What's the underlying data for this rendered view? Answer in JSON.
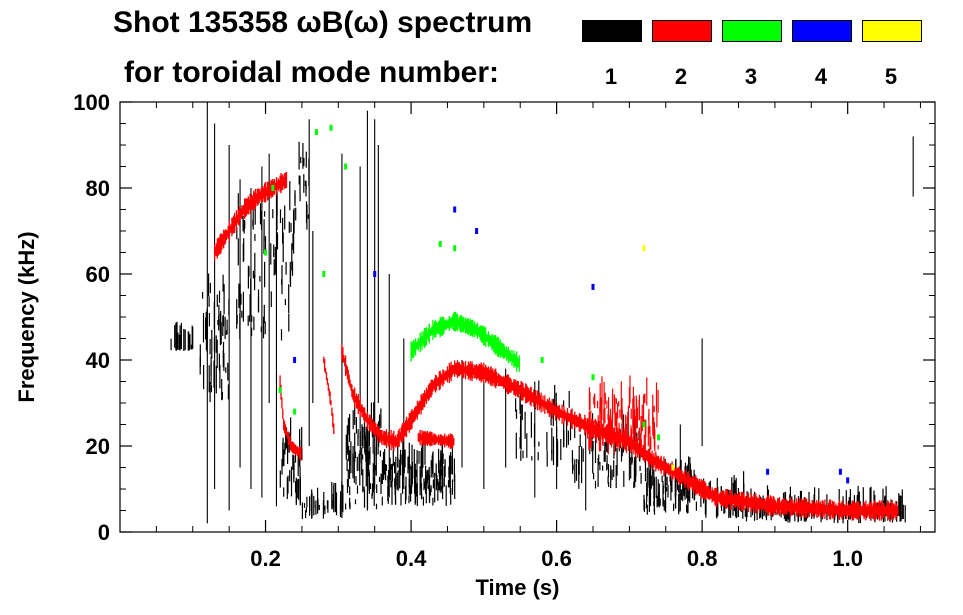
{
  "chart_data": {
    "type": "scatter",
    "title_line1": "Shot 135358 ωB(ω) spectrum",
    "title_line2": "for toroidal mode number:",
    "xlabel": "Time (s)",
    "ylabel": "Frequency (kHz)",
    "xlim": [
      0.0,
      1.12
    ],
    "ylim": [
      0,
      100
    ],
    "xticks": [
      0.2,
      0.4,
      0.6,
      0.8,
      1.0
    ],
    "xtick_labels": [
      "0.2",
      "0.4",
      "0.6",
      "0.8",
      "1.0"
    ],
    "yticks": [
      0,
      20,
      40,
      60,
      80,
      100
    ],
    "ytick_labels": [
      "0",
      "20",
      "40",
      "60",
      "80",
      "100"
    ],
    "legend": [
      {
        "label": "1",
        "color": "#000000"
      },
      {
        "label": "2",
        "color": "#ff0000"
      },
      {
        "label": "3",
        "color": "#00ff00"
      },
      {
        "label": "4",
        "color": "#0000ff"
      },
      {
        "label": "5",
        "color": "#ffff00"
      }
    ],
    "series": [
      {
        "name": "n=1",
        "color": "#000000",
        "blobs": [
          {
            "t": [
              0.07,
              0.1
            ],
            "f": [
              42,
              43
            ],
            "d": 8
          },
          {
            "t": [
              0.11,
              0.15
            ],
            "f": [
              30,
              56
            ],
            "d": 14
          },
          {
            "t": [
              0.16,
              0.24
            ],
            "f": [
              44,
              76
            ],
            "d": 10
          },
          {
            "t": [
              0.24,
              0.26
            ],
            "f": [
              70,
              88
            ],
            "d": 10
          },
          {
            "t": [
              0.22,
              0.25
            ],
            "f": [
              6,
              20
            ],
            "d": 12
          },
          {
            "t": [
              0.25,
              0.31
            ],
            "f": [
              3,
              6
            ],
            "d": 6
          },
          {
            "t": [
              0.31,
              0.36
            ],
            "f": [
              5,
              25
            ],
            "d": 18
          },
          {
            "t": [
              0.36,
              0.46
            ],
            "f": [
              6,
              16
            ],
            "d": 16
          },
          {
            "t": [
              0.54,
              0.62
            ],
            "f": [
              15,
              30
            ],
            "d": 6
          },
          {
            "t": [
              0.62,
              0.72
            ],
            "f": [
              10,
              22
            ],
            "d": 8
          },
          {
            "t": [
              0.72,
              0.8
            ],
            "f": [
              4,
              12
            ],
            "d": 12
          },
          {
            "t": [
              0.8,
              0.86
            ],
            "f": [
              3,
              8
            ],
            "d": 8
          },
          {
            "t": [
              0.86,
              1.08
            ],
            "f": [
              2,
              4
            ],
            "d": 6
          }
        ],
        "streaks": [
          {
            "t": 0.12,
            "f": [
              2,
              100
            ]
          },
          {
            "t": 0.13,
            "f": [
              10,
              95
            ]
          },
          {
            "t": 0.15,
            "f": [
              5,
              90
            ]
          },
          {
            "t": 0.165,
            "f": [
              15,
              82
            ]
          },
          {
            "t": 0.18,
            "f": [
              10,
              80
            ]
          },
          {
            "t": 0.195,
            "f": [
              8,
              85
            ]
          },
          {
            "t": 0.205,
            "f": [
              30,
              88
            ]
          },
          {
            "t": 0.215,
            "f": [
              6,
              80
            ]
          },
          {
            "t": 0.26,
            "f": [
              20,
              96
            ]
          },
          {
            "t": 0.265,
            "f": [
              30,
              70
            ]
          },
          {
            "t": 0.305,
            "f": [
              10,
              88
            ]
          },
          {
            "t": 0.33,
            "f": [
              20,
              85
            ]
          },
          {
            "t": 0.34,
            "f": [
              5,
              98
            ]
          },
          {
            "t": 0.35,
            "f": [
              10,
              96
            ]
          },
          {
            "t": 0.355,
            "f": [
              30,
              90
            ]
          },
          {
            "t": 0.37,
            "f": [
              8,
              60
            ]
          },
          {
            "t": 0.39,
            "f": [
              10,
              45
            ]
          },
          {
            "t": 0.47,
            "f": [
              15,
              40
            ]
          },
          {
            "t": 0.5,
            "f": [
              10,
              35
            ]
          },
          {
            "t": 0.53,
            "f": [
              15,
              38
            ]
          },
          {
            "t": 0.57,
            "f": [
              8,
              35
            ]
          },
          {
            "t": 0.6,
            "f": [
              10,
              30
            ]
          },
          {
            "t": 0.64,
            "f": [
              5,
              25
            ]
          },
          {
            "t": 0.7,
            "f": [
              12,
              22
            ]
          },
          {
            "t": 0.77,
            "f": [
              5,
              25
            ]
          },
          {
            "t": 0.8,
            "f": [
              20,
              45
            ]
          },
          {
            "t": 1.09,
            "f": [
              78,
              92
            ]
          }
        ]
      },
      {
        "name": "n=2",
        "color": "#ff0000",
        "path": [
          [
            0.13,
            65
          ],
          [
            0.15,
            70
          ],
          [
            0.17,
            75
          ],
          [
            0.19,
            78
          ],
          [
            0.21,
            80
          ],
          [
            0.23,
            82
          ]
        ],
        "path2": [
          [
            0.22,
            35
          ],
          [
            0.225,
            25
          ],
          [
            0.235,
            20
          ],
          [
            0.25,
            18
          ]
        ],
        "path3": [
          [
            0.305,
            42
          ],
          [
            0.32,
            32
          ],
          [
            0.34,
            26
          ],
          [
            0.36,
            22
          ],
          [
            0.38,
            21
          ],
          [
            0.4,
            26
          ],
          [
            0.43,
            34
          ],
          [
            0.46,
            38
          ],
          [
            0.5,
            37
          ],
          [
            0.55,
            33
          ],
          [
            0.6,
            28
          ],
          [
            0.65,
            24
          ],
          [
            0.7,
            21
          ],
          [
            0.73,
            17
          ],
          [
            0.78,
            12
          ],
          [
            0.82,
            8
          ],
          [
            0.86,
            7
          ],
          [
            0.9,
            6
          ],
          [
            1.0,
            5
          ],
          [
            1.07,
            5
          ]
        ],
        "path4": [
          [
            0.28,
            40
          ],
          [
            0.29,
            30
          ],
          [
            0.295,
            22
          ]
        ],
        "band": [
          [
            0.41,
            22
          ],
          [
            0.46,
            21
          ]
        ],
        "blob": {
          "t": [
            0.64,
            0.74
          ],
          "f": [
            18,
            30
          ],
          "d": 14
        }
      },
      {
        "name": "n=3",
        "color": "#00ff00",
        "path": [
          [
            0.4,
            42
          ],
          [
            0.43,
            47
          ],
          [
            0.46,
            49
          ],
          [
            0.49,
            47
          ],
          [
            0.52,
            43
          ],
          [
            0.55,
            39
          ]
        ],
        "dots": [
          [
            0.2,
            65
          ],
          [
            0.21,
            80
          ],
          [
            0.27,
            93
          ],
          [
            0.29,
            94
          ],
          [
            0.22,
            33
          ],
          [
            0.24,
            28
          ],
          [
            0.44,
            67
          ],
          [
            0.46,
            66
          ],
          [
            0.58,
            40
          ],
          [
            0.65,
            36
          ],
          [
            0.72,
            25
          ],
          [
            0.74,
            22
          ],
          [
            0.31,
            85
          ],
          [
            0.28,
            60
          ]
        ]
      },
      {
        "name": "n=4",
        "color": "#0000ff",
        "dots": [
          [
            0.65,
            57
          ],
          [
            0.46,
            75
          ],
          [
            0.49,
            70
          ],
          [
            0.24,
            40
          ],
          [
            0.35,
            60
          ],
          [
            0.89,
            14
          ],
          [
            0.99,
            14
          ],
          [
            1.0,
            12
          ]
        ]
      },
      {
        "name": "n=5",
        "color": "#ffff00",
        "dots": [
          [
            0.72,
            66
          ],
          [
            0.76,
            15
          ]
        ]
      }
    ]
  }
}
